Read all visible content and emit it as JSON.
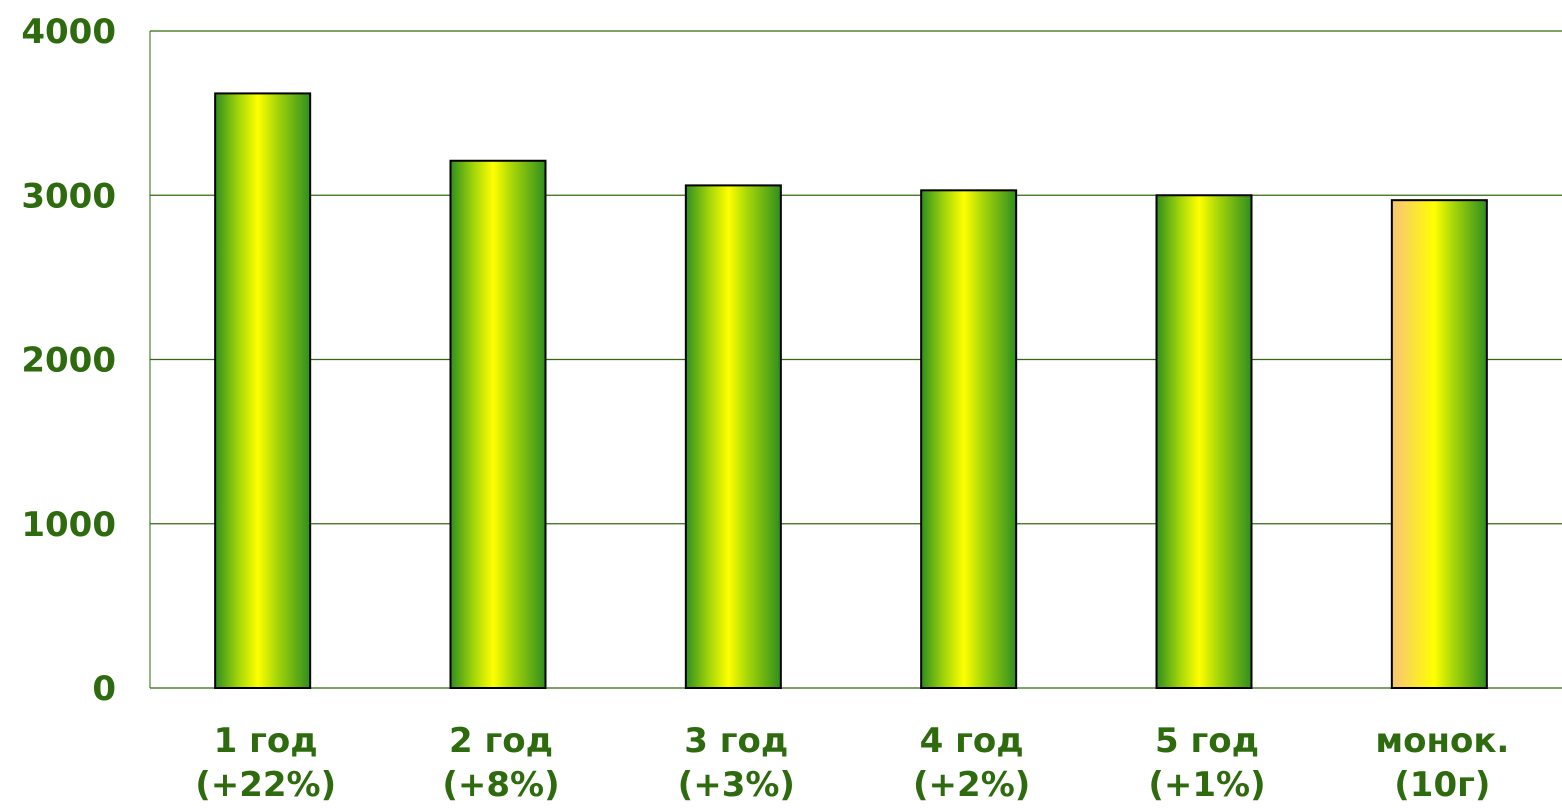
{
  "chart_data": {
    "type": "bar",
    "categories": [
      [
        "1 год",
        "(+22%)"
      ],
      [
        "2 год",
        "(+8%)"
      ],
      [
        "3 год",
        "(+3%)"
      ],
      [
        "4 год",
        "(+2%)"
      ],
      [
        "5 год",
        "(+1%)"
      ],
      [
        "монок.",
        "(10г)"
      ]
    ],
    "values": [
      3620,
      3210,
      3060,
      3030,
      3000,
      2970
    ],
    "ylim": [
      0,
      4000
    ],
    "yticks": [
      0,
      1000,
      2000,
      3000,
      4000
    ],
    "title": "",
    "xlabel": "",
    "ylabel": "",
    "grid": true,
    "legend": "none",
    "colors": {
      "text": "#2e6b0e",
      "grid": "#2e6b0e",
      "bar_edge": "#000000",
      "bar_green_dark": "#2f8f1e",
      "bar_green_mid": "#a6d60a",
      "bar_yellow": "#ffff00",
      "highlight_orange": "#f7c37a"
    },
    "highlight_index": 5
  }
}
